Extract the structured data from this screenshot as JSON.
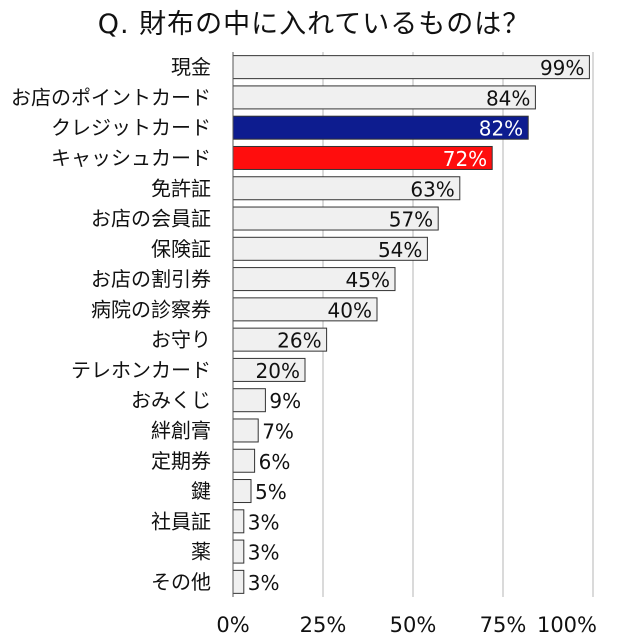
{
  "chart_data": {
    "type": "bar",
    "orientation": "horizontal",
    "title": "Q. 財布の中に入れているものは？",
    "categories": [
      "現金",
      "お店のポイントカード",
      "クレジットカード",
      "キャッシュカード",
      "免許証",
      "お店の会員証",
      "保険証",
      "お店の割引券",
      "病院の診察券",
      "お守り",
      "テレホンカード",
      "おみくじ",
      "絆創膏",
      "定期券",
      "鍵",
      "社員証",
      "薬",
      "その他"
    ],
    "values": [
      99,
      84,
      82,
      72,
      63,
      57,
      54,
      45,
      40,
      26,
      20,
      9,
      7,
      6,
      5,
      3,
      3,
      3
    ],
    "value_labels": [
      "99%",
      "84%",
      "82%",
      "72%",
      "63%",
      "57%",
      "54%",
      "45%",
      "40%",
      "26%",
      "20%",
      "9%",
      "7%",
      "6%",
      "5%",
      "3%",
      "3%",
      "3%"
    ],
    "xlim": [
      0,
      100
    ],
    "xticks": [
      0,
      25,
      50,
      75,
      100
    ],
    "xtick_labels": [
      "0%",
      "25%",
      "50%",
      "75%",
      "100%"
    ],
    "grid": "vertical",
    "legend": "none",
    "colors": {
      "default_bar": "#f0f0f0",
      "bar_border": "#333333",
      "highlight": {
        "クレジットカード": "#0d1c8f",
        "キャッシュカード": "#ff0d0d"
      },
      "highlight_text": "#ffffff",
      "text": "#111111",
      "grid": "#b5b5b5"
    }
  }
}
